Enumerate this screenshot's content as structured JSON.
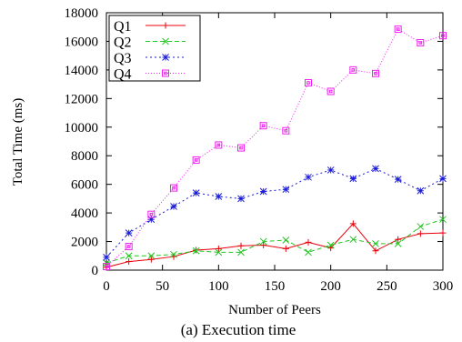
{
  "caption": "(a) Execution time",
  "chart_data": {
    "type": "line",
    "xlabel": "Number of Peers",
    "ylabel": "Total Time (ms)",
    "xlim": [
      0,
      300
    ],
    "ylim": [
      0,
      18000
    ],
    "xticks": [
      0,
      50,
      100,
      150,
      200,
      250,
      300
    ],
    "yticks": [
      0,
      2000,
      4000,
      6000,
      8000,
      10000,
      12000,
      14000,
      16000,
      18000
    ],
    "grid": false,
    "legend_position": "top-left",
    "x": [
      0,
      20,
      40,
      60,
      80,
      100,
      120,
      140,
      160,
      180,
      200,
      220,
      240,
      260,
      280,
      300
    ],
    "series": [
      {
        "name": "Q1",
        "color": "#e8000b",
        "dash": "",
        "marker": "plus",
        "values": [
          200,
          600,
          750,
          950,
          1400,
          1500,
          1700,
          1750,
          1500,
          1950,
          1550,
          3250,
          1350,
          2150,
          2550,
          2600
        ]
      },
      {
        "name": "Q2",
        "color": "#22c622",
        "dash": "5,3",
        "marker": "x",
        "values": [
          500,
          1000,
          1000,
          1100,
          1350,
          1250,
          1250,
          2000,
          2100,
          1250,
          1750,
          2150,
          1850,
          1850,
          3050,
          3550
        ]
      },
      {
        "name": "Q3",
        "color": "#1a1ad8",
        "dash": "2,3",
        "marker": "star",
        "values": [
          900,
          2600,
          3550,
          4450,
          5400,
          5150,
          5000,
          5500,
          5650,
          6500,
          7000,
          6400,
          7100,
          6350,
          5550,
          6400
        ]
      },
      {
        "name": "Q4",
        "color": "#ee22ee",
        "dash": "1,2",
        "marker": "square",
        "values": [
          250,
          1650,
          3900,
          5750,
          7700,
          8750,
          8550,
          10100,
          9750,
          13100,
          12500,
          14000,
          13750,
          16850,
          15900,
          16400
        ]
      }
    ]
  }
}
